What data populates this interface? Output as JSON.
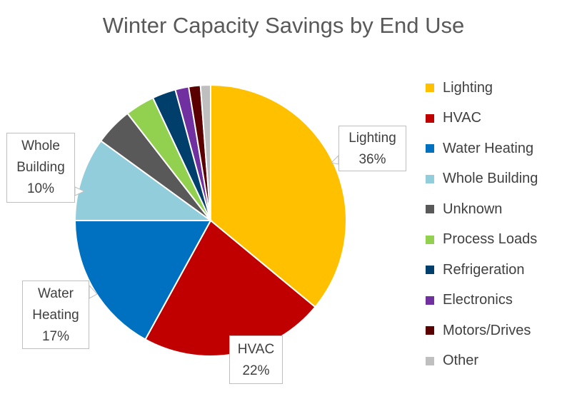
{
  "chart_data": {
    "type": "pie",
    "title": "Winter Capacity Savings by End Use",
    "slices": [
      {
        "label": "Lighting",
        "value": 36,
        "color": "#FFC000"
      },
      {
        "label": "HVAC",
        "value": 22,
        "color": "#C00000"
      },
      {
        "label": "Water Heating",
        "value": 17,
        "color": "#0070C0"
      },
      {
        "label": "Whole Building",
        "value": 10,
        "color": "#92CDDC"
      },
      {
        "label": "Unknown",
        "value": 4.5,
        "color": "#595959"
      },
      {
        "label": "Process Loads",
        "value": 3.5,
        "color": "#92D050"
      },
      {
        "label": "Refrigeration",
        "value": 2.8,
        "color": "#003F6B"
      },
      {
        "label": "Electronics",
        "value": 1.6,
        "color": "#7030A0"
      },
      {
        "label": "Motors/Drives",
        "value": 1.4,
        "color": "#5B0000"
      },
      {
        "label": "Other",
        "value": 1.2,
        "color": "#BFBFBF"
      }
    ],
    "data_labels": [
      {
        "name": "Lighting",
        "value": "36%"
      },
      {
        "name": "HVAC",
        "value": "22%"
      },
      {
        "name": "Water Heating",
        "value": "17%"
      },
      {
        "name": "Whole Building",
        "value": "10%"
      }
    ],
    "legend_position": "right"
  }
}
